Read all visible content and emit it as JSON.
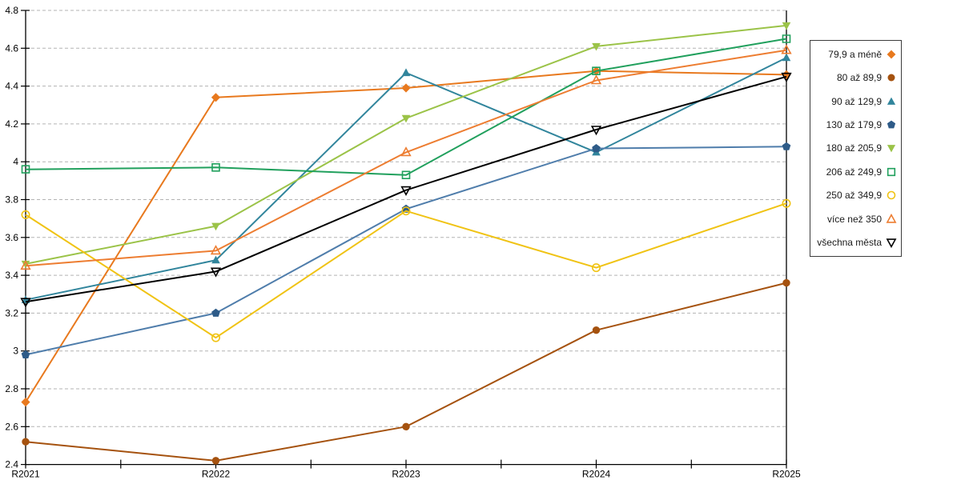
{
  "chart_data": {
    "type": "line",
    "title": "",
    "xlabel": "",
    "ylabel": "",
    "categories": [
      "R2021",
      "R2022",
      "R2023",
      "R2024",
      "R2025"
    ],
    "ylim": [
      2.4,
      4.8
    ],
    "ytick_step": 0.2,
    "ytick_labels": [
      "2.4",
      "2.6",
      "2.8",
      "3",
      "3.2",
      "3.4",
      "3.6",
      "3.8",
      "4",
      "4.2",
      "4.4",
      "4.6",
      "4.8"
    ],
    "grid": "horizontal-dashed",
    "grid_color": "#b3b3b3",
    "axis_color": "#000000",
    "legend_position": "right",
    "series": [
      {
        "name": "79,9 a méně",
        "marker": "diamond",
        "fill": "filled",
        "color": "#E8791E",
        "values": [
          2.73,
          4.34,
          4.39,
          4.48,
          4.46
        ]
      },
      {
        "name": "80 až 89,9",
        "marker": "circle",
        "fill": "filled",
        "color": "#A5520F",
        "values": [
          2.52,
          2.42,
          2.6,
          3.11,
          3.36
        ]
      },
      {
        "name": "90 až 129,9",
        "marker": "triangle-up",
        "fill": "filled",
        "color": "#31859C",
        "values": [
          3.27,
          3.48,
          4.47,
          4.05,
          4.55
        ]
      },
      {
        "name": "130 až 179,9",
        "marker": "pentagon",
        "fill": "filled",
        "color": "#4F7DAB",
        "marker_color": "#2E5B88",
        "values": [
          2.98,
          3.2,
          3.75,
          4.07,
          4.08
        ]
      },
      {
        "name": "180 až 205,9",
        "marker": "triangle-down",
        "fill": "filled",
        "color": "#9BC348",
        "values": [
          3.46,
          3.66,
          4.23,
          4.61,
          4.72
        ]
      },
      {
        "name": "206 až 249,9",
        "marker": "square",
        "fill": "open",
        "color": "#21A05D",
        "values": [
          3.96,
          3.97,
          3.93,
          4.48,
          4.65
        ]
      },
      {
        "name": "250 až 349,9",
        "marker": "circle",
        "fill": "open",
        "color": "#F0C314",
        "values": [
          3.72,
          3.07,
          3.74,
          3.44,
          3.78
        ]
      },
      {
        "name": "více než 350",
        "marker": "triangle-up",
        "fill": "open",
        "color": "#ED7D31",
        "values": [
          3.45,
          3.53,
          4.05,
          4.43,
          4.59
        ]
      },
      {
        "name": "všechna města",
        "marker": "triangle-down",
        "fill": "open",
        "color": "#000000",
        "values": [
          3.26,
          3.42,
          3.85,
          4.17,
          4.45
        ]
      }
    ]
  }
}
